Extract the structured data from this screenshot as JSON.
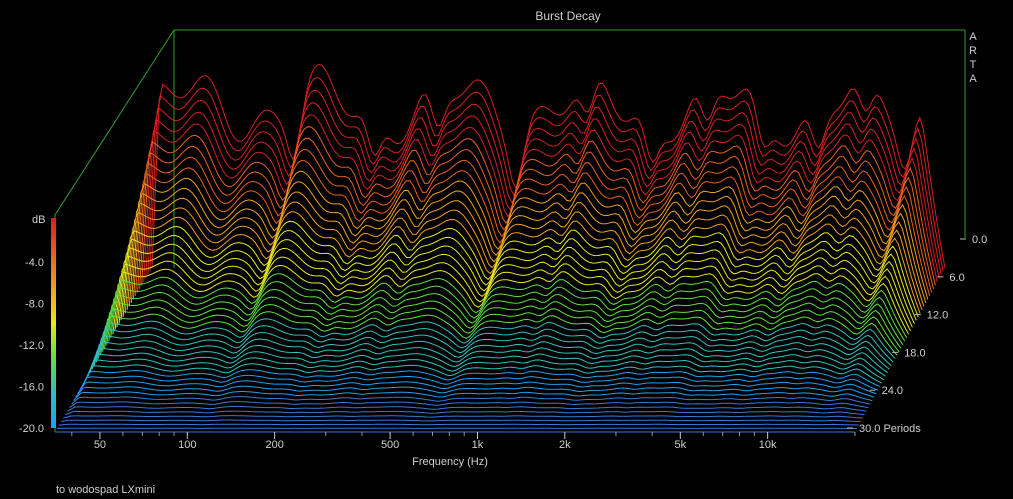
{
  "chart_data": {
    "type": "waterfall",
    "title": "Burst Decay",
    "brand_letters": [
      "A",
      "R",
      "T",
      "A"
    ],
    "xlabel": "Frequency (Hz)",
    "x_tick_labels": [
      {
        "value": 50,
        "label": "50"
      },
      {
        "value": 100,
        "label": "100"
      },
      {
        "value": 200,
        "label": "200"
      },
      {
        "value": 500,
        "label": "500"
      },
      {
        "value": 1000,
        "label": "1k"
      },
      {
        "value": 2000,
        "label": "2k"
      },
      {
        "value": 5000,
        "label": "5k"
      },
      {
        "value": 10000,
        "label": "10k"
      }
    ],
    "xlim": [
      35,
      20000
    ],
    "x_scale": "log",
    "zlabel": "dB",
    "z_ticks": [
      "-4.0",
      "-8.0",
      "-12.0",
      "-16.0",
      "-20.0"
    ],
    "zlim": [
      -20,
      0
    ],
    "y_ticks": [
      "0.0",
      "6.0",
      "12.0",
      "18.0",
      "24.0",
      "30.0 Periods"
    ],
    "ylim": [
      0,
      30
    ],
    "colorbar": [
      "#d42020",
      "#e86020",
      "#f0a020",
      "#e8e820",
      "#60e040",
      "#30c0c0",
      "#20a0f0"
    ],
    "line_color": "#3a78d8",
    "floor_color": "#2c55a8",
    "frame_color": "#2e9e2e",
    "footer": "to wodospad LXmini"
  }
}
